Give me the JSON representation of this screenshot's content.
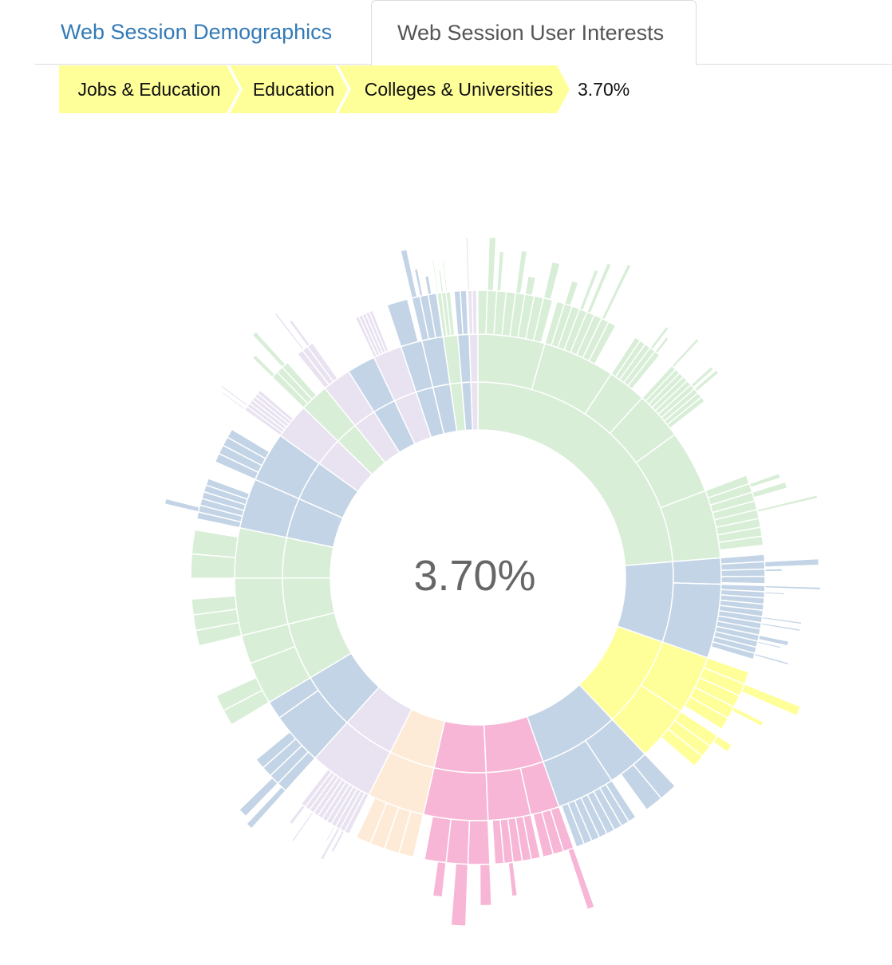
{
  "tabs": [
    {
      "label": "Web Session Demographics",
      "active": false
    },
    {
      "label": "Web Session User Interests",
      "active": true
    }
  ],
  "breadcrumb": {
    "items": [
      "Jobs & Education",
      "Education",
      "Colleges & Universities"
    ],
    "percentage": "3.70%",
    "color": "#ffff99"
  },
  "center_label": "3.70%",
  "chart_data": {
    "type": "sunburst",
    "selected_path": [
      "Jobs & Education",
      "Education",
      "Colleges & Universities"
    ],
    "selected_share": "3.70%",
    "palette": {
      "green": "#d8eed7",
      "blue": "#c3d4e6",
      "yellow": "#ffff99",
      "pink": "#f7b6d6",
      "peach": "#fdebd8",
      "lavender": "#e9e2f1"
    },
    "inner_ring": [
      {
        "color": "green",
        "value": 25.0
      },
      {
        "color": "blue",
        "value": 7.0
      },
      {
        "color": "yellow",
        "value": 8.0
      },
      {
        "color": "blue",
        "value": 7.0
      },
      {
        "color": "pink",
        "value": 5.0
      },
      {
        "color": "pink",
        "value": 4.5
      },
      {
        "color": "peach",
        "value": 4.0
      },
      {
        "color": "lavender",
        "value": 4.5
      },
      {
        "color": "blue",
        "value": 5.0
      },
      {
        "color": "green",
        "value": 5.0
      },
      {
        "color": "green",
        "value": 4.0
      },
      {
        "color": "green",
        "value": 3.5
      },
      {
        "color": "blue",
        "value": 3.5
      },
      {
        "color": "blue",
        "value": 3.5
      },
      {
        "color": "lavender",
        "value": 2.5
      },
      {
        "color": "green",
        "value": 2.0
      },
      {
        "color": "lavender",
        "value": 2.0
      },
      {
        "color": "blue",
        "value": 2.0
      },
      {
        "color": "lavender",
        "value": 2.0
      },
      {
        "color": "blue",
        "value": 1.5
      },
      {
        "color": "blue",
        "value": 1.5
      },
      {
        "color": "green",
        "value": 1.0
      },
      {
        "color": "blue",
        "value": 0.8
      },
      {
        "color": "lavender",
        "value": 0.6
      }
    ]
  }
}
